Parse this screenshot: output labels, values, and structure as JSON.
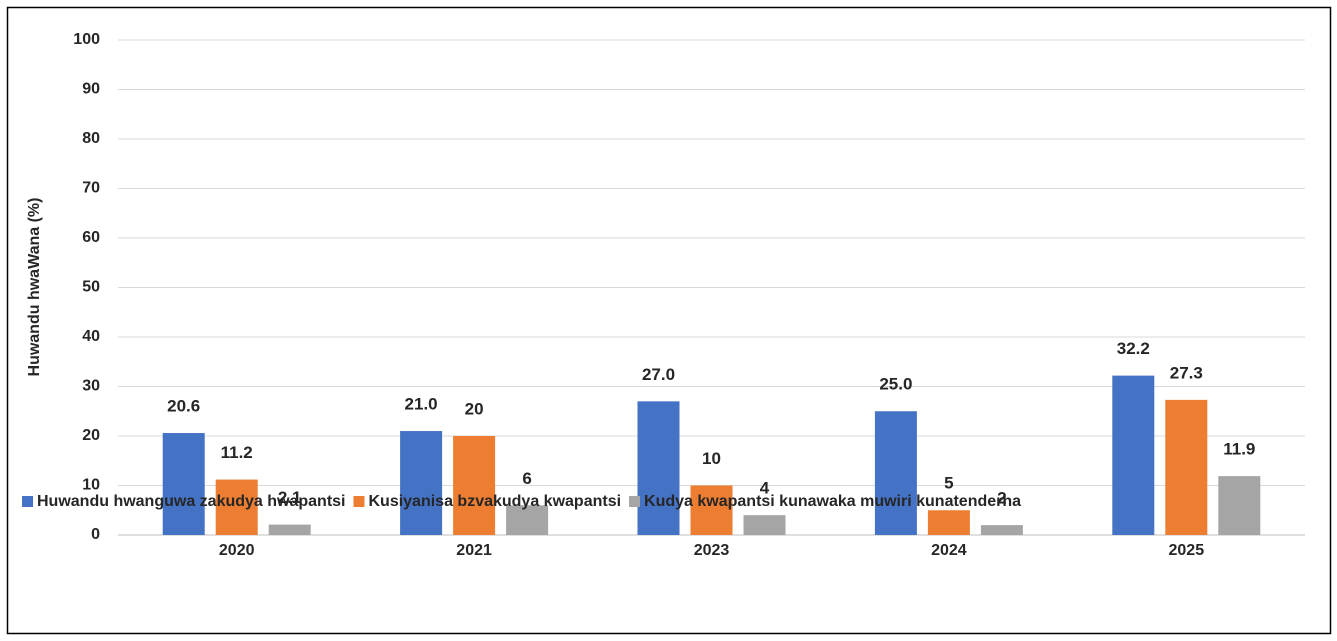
{
  "chart_data": {
    "type": "bar",
    "y_label": "Huwandu hwaWana (%)",
    "categories": [
      "2020",
      "2021",
      "2023",
      "2024",
      "2025"
    ],
    "series": [
      {
        "name": "Huwandu hwanguwa zakudya hwapantsi",
        "color": "#4472c4",
        "values": [
          20.6,
          21,
          27,
          25,
          32.2
        ],
        "value_labels": [
          "20.6",
          "21.0",
          "27.0",
          "25.0",
          "32.2"
        ]
      },
      {
        "name": "Kusiyanisa bzvakudya kwapantsi",
        "color": "#ed7d31",
        "values": [
          11.2,
          20,
          10,
          5,
          27.3
        ]
      },
      {
        "name": "Kudya kwapantsi kunawaka muwiri kunatenderha",
        "color": "#a5a5a5",
        "values": [
          2.1,
          6,
          4,
          2,
          11.9
        ]
      }
    ],
    "ylim": [
      0,
      100
    ],
    "yticks": [
      0,
      10,
      20,
      30,
      40,
      50,
      60,
      70,
      80,
      90,
      100
    ],
    "grid": true,
    "legend": "bottom"
  }
}
